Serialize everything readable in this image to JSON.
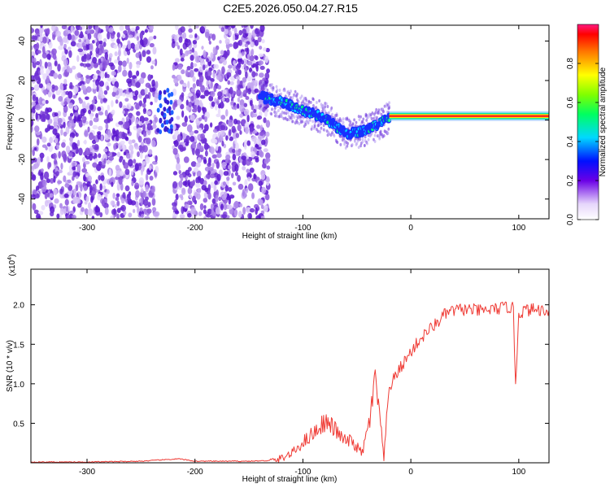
{
  "title": "C2E5.2026.050.04.27.R15",
  "chart_data": [
    {
      "type": "heatmap",
      "xlabel": "Height of straight line (km)",
      "ylabel": "Frequency (Hz)",
      "xlim": [
        -352,
        128
      ],
      "ylim": [
        -50,
        48
      ],
      "x_ticks": [
        -300,
        -200,
        -100,
        0,
        100
      ],
      "y_ticks": [
        -40,
        -20,
        0,
        20,
        40
      ],
      "colorbar": {
        "label": "Normalized spectral amplitude",
        "range": [
          0,
          1
        ],
        "ticks": [
          0.0,
          0.2,
          0.4,
          0.6,
          0.8
        ]
      },
      "grid": false,
      "features": {
        "noise_region_x": [
          -352,
          -132
        ],
        "noise_gap_x": [
          -235,
          -220
        ],
        "signal_track": {
          "x": [
            -140,
            -120,
            -100,
            -80,
            -60,
            -40,
            -20,
            0,
            50,
            128
          ],
          "y": [
            12,
            9,
            5,
            1,
            -7,
            -5,
            1,
            2,
            2,
            2
          ]
        }
      }
    },
    {
      "type": "line",
      "xlabel": "Height of straight line (km)",
      "ylabel": "SNR (10 * v/v)",
      "y_multiplier": "(x10",
      "y_multiplier_exp": "4",
      "y_multiplier_close": ")",
      "xlim": [
        -352,
        128
      ],
      "ylim": [
        0,
        2.45
      ],
      "x_ticks": [
        -300,
        -200,
        -100,
        0,
        100
      ],
      "y_ticks": [
        0.5,
        1.0,
        1.5,
        2.0
      ],
      "color": "#ef3b35",
      "series": [
        {
          "x": [
            -352,
            -300,
            -250,
            -215,
            -200,
            -150,
            -125,
            -110,
            -100,
            -90,
            -80,
            -72,
            -62,
            -55,
            -45,
            -38,
            -33,
            -30,
            -28,
            -25,
            -20,
            -12,
            -5,
            0,
            5,
            10,
            15,
            20,
            25,
            30,
            35,
            45,
            55,
            65,
            75,
            85,
            90,
            95,
            97,
            100,
            105,
            115,
            128
          ],
          "y": [
            0.01,
            0.01,
            0.02,
            0.05,
            0.02,
            0.02,
            0.03,
            0.12,
            0.26,
            0.38,
            0.52,
            0.45,
            0.28,
            0.27,
            0.12,
            0.55,
            1.05,
            0.75,
            0.45,
            0.05,
            0.95,
            1.15,
            1.3,
            1.4,
            1.5,
            1.58,
            1.66,
            1.72,
            1.78,
            1.86,
            1.91,
            1.94,
            1.94,
            1.92,
            1.94,
            1.96,
            1.97,
            1.95,
            1.0,
            1.88,
            1.93,
            1.94,
            1.93
          ]
        }
      ]
    }
  ]
}
